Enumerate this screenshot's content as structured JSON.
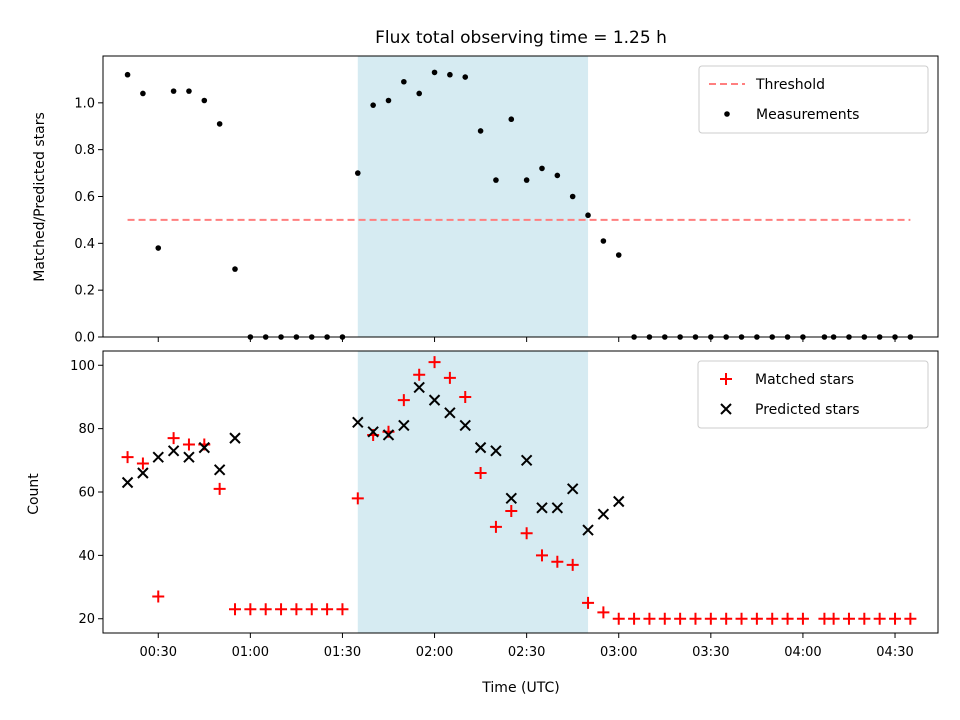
{
  "chart_data": [
    {
      "type": "scatter",
      "title": "Flux total observing time = 1.25 h",
      "xlabel": "",
      "ylabel": "Matched/Predicted stars",
      "xlim": [
        "00:12",
        "04:44"
      ],
      "ylim": [
        0,
        1.2
      ],
      "yticks": [
        "0.0",
        "0.2",
        "0.4",
        "0.6",
        "0.8",
        "1.0"
      ],
      "highlight_span": {
        "from": "01:35",
        "to": "02:50",
        "color": "#add8e6"
      },
      "legend": {
        "placement": "top-right",
        "entries": [
          "Threshold",
          "Measurements"
        ]
      },
      "series": [
        {
          "name": "Threshold",
          "type": "dashed-line",
          "color": "#ff7f7f",
          "x": [
            "00:20",
            "04:35"
          ],
          "y": [
            0.5,
            0.5
          ]
        },
        {
          "name": "Measurements",
          "type": "scatter",
          "marker": "dot",
          "color": "#000000",
          "x": [
            "00:20",
            "00:25",
            "00:30",
            "00:35",
            "00:40",
            "00:45",
            "00:50",
            "00:55",
            "01:00",
            "01:05",
            "01:10",
            "01:15",
            "01:20",
            "01:25",
            "01:30",
            "01:35",
            "01:40",
            "01:45",
            "01:50",
            "01:55",
            "02:00",
            "02:05",
            "02:10",
            "02:15",
            "02:20",
            "02:25",
            "02:30",
            "02:35",
            "02:40",
            "02:45",
            "02:50",
            "02:55",
            "03:00",
            "03:05",
            "03:10",
            "03:15",
            "03:20",
            "03:25",
            "03:30",
            "03:35",
            "03:40",
            "03:45",
            "03:50",
            "03:55",
            "04:00",
            "04:07",
            "04:10",
            "04:15",
            "04:20",
            "04:25",
            "04:30",
            "04:35"
          ],
          "y": [
            1.12,
            1.04,
            0.38,
            1.05,
            1.05,
            1.01,
            0.91,
            0.29,
            0,
            0,
            0,
            0,
            0,
            0,
            0,
            0.7,
            0.99,
            1.01,
            1.09,
            1.04,
            1.13,
            1.12,
            1.11,
            0.88,
            0.67,
            0.93,
            0.67,
            0.72,
            0.69,
            0.6,
            0.52,
            0.41,
            0.35,
            0,
            0,
            0,
            0,
            0,
            0,
            0,
            0,
            0,
            0,
            0,
            0,
            0,
            0,
            0,
            0,
            0,
            0,
            0
          ]
        }
      ]
    },
    {
      "type": "scatter",
      "title": "",
      "xlabel": "Time (UTC)",
      "ylabel": "Count",
      "xlim": [
        "00:12",
        "04:44"
      ],
      "ylim": [
        15.5,
        104.5
      ],
      "xticks": [
        "00:30",
        "01:00",
        "01:30",
        "02:00",
        "02:30",
        "03:00",
        "03:30",
        "04:00",
        "04:30"
      ],
      "yticks": [
        "20",
        "40",
        "60",
        "80",
        "100"
      ],
      "highlight_span": {
        "from": "01:35",
        "to": "02:50",
        "color": "#add8e6"
      },
      "legend": {
        "placement": "top-right",
        "entries": [
          "Matched stars",
          "Predicted stars"
        ]
      },
      "series": [
        {
          "name": "Matched stars",
          "type": "scatter",
          "marker": "plus",
          "color": "#ff0000",
          "x": [
            "00:20",
            "00:25",
            "00:30",
            "00:35",
            "00:40",
            "00:45",
            "00:50",
            "00:55",
            "01:00",
            "01:05",
            "01:10",
            "01:15",
            "01:20",
            "01:25",
            "01:30",
            "01:35",
            "01:40",
            "01:45",
            "01:50",
            "01:55",
            "02:00",
            "02:05",
            "02:10",
            "02:15",
            "02:20",
            "02:25",
            "02:30",
            "02:35",
            "02:40",
            "02:45",
            "02:50",
            "02:55",
            "03:00",
            "03:05",
            "03:10",
            "03:15",
            "03:20",
            "03:25",
            "03:30",
            "03:35",
            "03:40",
            "03:45",
            "03:50",
            "03:55",
            "04:00",
            "04:07",
            "04:10",
            "04:15",
            "04:20",
            "04:25",
            "04:30",
            "04:35"
          ],
          "y": [
            71,
            69,
            27,
            77,
            75,
            75,
            61,
            23,
            23,
            23,
            23,
            23,
            23,
            23,
            23,
            58,
            78,
            79,
            89,
            97,
            101,
            96,
            90,
            66,
            49,
            54,
            47,
            40,
            38,
            37,
            25,
            22,
            20,
            20,
            20,
            20,
            20,
            20,
            20,
            20,
            20,
            20,
            20,
            20,
            20,
            20,
            20,
            20,
            20,
            20,
            20,
            20
          ]
        },
        {
          "name": "Predicted stars",
          "type": "scatter",
          "marker": "x",
          "color": "#000000",
          "x": [
            "00:20",
            "00:25",
            "00:30",
            "00:35",
            "00:40",
            "00:45",
            "00:50",
            "00:55",
            "01:35",
            "01:40",
            "01:45",
            "01:50",
            "01:55",
            "02:00",
            "02:05",
            "02:10",
            "02:15",
            "02:20",
            "02:25",
            "02:30",
            "02:35",
            "02:40",
            "02:45",
            "02:50",
            "02:55",
            "03:00"
          ],
          "y": [
            63,
            66,
            71,
            73,
            71,
            74,
            67,
            77,
            82,
            79,
            78,
            81,
            93,
            89,
            85,
            81,
            74,
            73,
            58,
            70,
            55,
            55,
            61,
            48,
            53,
            57
          ]
        }
      ]
    }
  ]
}
